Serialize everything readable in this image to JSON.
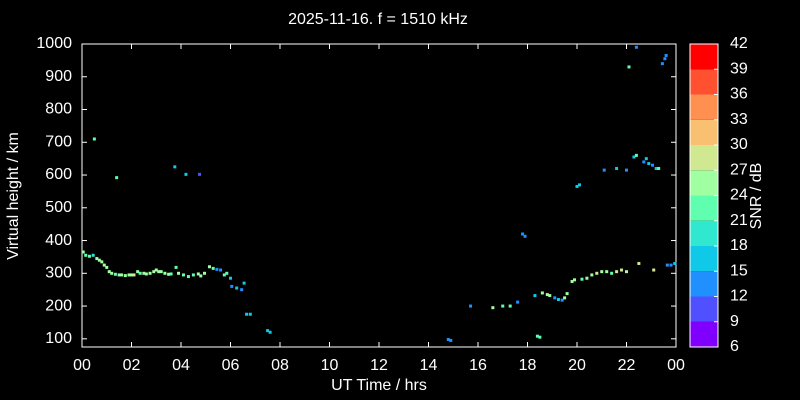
{
  "chart_data": {
    "type": "scatter",
    "title": "2025-11-16. f = 1510 kHz",
    "xlabel": "UT Time / hrs",
    "ylabel": "Virtual height / km",
    "colorbar_label": "SNR / dB",
    "xlim": [
      0,
      24
    ],
    "xticks": [
      {
        "value": 0,
        "label": "00"
      },
      {
        "value": 2,
        "label": "02"
      },
      {
        "value": 4,
        "label": "04"
      },
      {
        "value": 6,
        "label": "06"
      },
      {
        "value": 8,
        "label": "08"
      },
      10,
      12,
      14,
      16,
      18,
      20,
      22,
      {
        "value": 24,
        "label": "00"
      }
    ],
    "ylim": [
      75,
      1000
    ],
    "yticks": [
      100,
      200,
      300,
      400,
      500,
      600,
      700,
      800,
      900,
      1000
    ],
    "clim": [
      6,
      42
    ],
    "cticks": [
      6,
      9,
      12,
      15,
      18,
      21,
      24,
      27,
      30,
      33,
      36,
      39,
      42
    ],
    "colors": [
      "#8000ff",
      "#5050ff",
      "#2090ff",
      "#10c8e8",
      "#30e8d0",
      "#60ffb0",
      "#a0ffa0",
      "#d0e890",
      "#f8c070",
      "#ff9050",
      "#ff5030",
      "#ff0000"
    ],
    "x": [
      0.05,
      0.15,
      0.3,
      0.45,
      0.6,
      0.7,
      0.8,
      0.9,
      1.0,
      1.1,
      1.2,
      1.35,
      1.5,
      1.6,
      1.75,
      1.9,
      2.0,
      2.1,
      2.25,
      2.35,
      2.5,
      2.6,
      2.75,
      2.9,
      3.0,
      3.1,
      3.2,
      3.35,
      3.5,
      3.6,
      3.8,
      3.9,
      4.1,
      4.3,
      4.5,
      4.7,
      4.8,
      4.95,
      5.15,
      5.3,
      5.45,
      5.6,
      5.75,
      5.85,
      6.0,
      6.05,
      6.25,
      6.45,
      6.55,
      6.65,
      6.8,
      7.5,
      7.6,
      0.5,
      1.4,
      3.75,
      4.2,
      4.75,
      14.8,
      14.9,
      15.7,
      16.6,
      17.0,
      17.3,
      17.6,
      17.8,
      17.9,
      18.3,
      18.4,
      18.5,
      18.6,
      18.8,
      18.9,
      19.1,
      19.25,
      19.4,
      19.5,
      19.6,
      19.8,
      19.9,
      20.0,
      20.1,
      20.2,
      20.4,
      20.6,
      20.8,
      21.0,
      21.2,
      21.4,
      21.6,
      21.8,
      22.0,
      21.1,
      21.6,
      22.0,
      22.1,
      22.3,
      22.4,
      22.4,
      22.5,
      22.7,
      22.8,
      22.9,
      23.05,
      23.2,
      23.3,
      23.1,
      23.45,
      23.55,
      23.6,
      23.65,
      23.8,
      23.95
    ],
    "values": [
      365,
      355,
      352,
      355,
      345,
      340,
      335,
      325,
      318,
      305,
      300,
      297,
      295,
      295,
      293,
      295,
      295,
      295,
      305,
      300,
      300,
      298,
      300,
      305,
      310,
      305,
      305,
      300,
      297,
      298,
      318,
      300,
      295,
      290,
      295,
      298,
      292,
      300,
      320,
      315,
      312,
      310,
      295,
      300,
      285,
      260,
      255,
      250,
      270,
      175,
      175,
      125,
      120,
      710,
      592,
      625,
      602,
      602,
      98,
      95,
      200,
      195,
      200,
      200,
      212,
      420,
      413,
      232,
      108,
      105,
      240,
      235,
      232,
      225,
      220,
      218,
      225,
      238,
      275,
      280,
      565,
      570,
      282,
      285,
      295,
      300,
      305,
      305,
      300,
      305,
      310,
      305,
      615,
      620,
      615,
      930,
      655,
      660,
      990,
      330,
      640,
      650,
      635,
      630,
      620,
      620,
      310,
      940,
      955,
      965,
      325,
      325,
      330
    ],
    "snr": [
      24,
      21,
      21,
      18,
      24,
      24,
      24,
      24,
      24,
      24,
      24,
      21,
      24,
      24,
      24,
      24,
      24,
      27,
      24,
      21,
      24,
      24,
      24,
      24,
      24,
      24,
      24,
      24,
      24,
      21,
      21,
      24,
      21,
      21,
      21,
      24,
      24,
      24,
      24,
      21,
      12,
      12,
      21,
      21,
      15,
      12,
      15,
      12,
      15,
      15,
      15,
      15,
      15,
      21,
      21,
      15,
      15,
      9,
      12,
      12,
      12,
      24,
      21,
      21,
      12,
      12,
      12,
      15,
      21,
      21,
      24,
      24,
      24,
      12,
      15,
      12,
      24,
      24,
      24,
      24,
      15,
      15,
      21,
      24,
      24,
      27,
      24,
      24,
      21,
      27,
      27,
      24,
      12,
      15,
      12,
      21,
      15,
      21,
      12,
      27,
      12,
      15,
      15,
      12,
      15,
      21,
      27,
      12,
      12,
      12,
      12,
      12,
      15
    ]
  }
}
